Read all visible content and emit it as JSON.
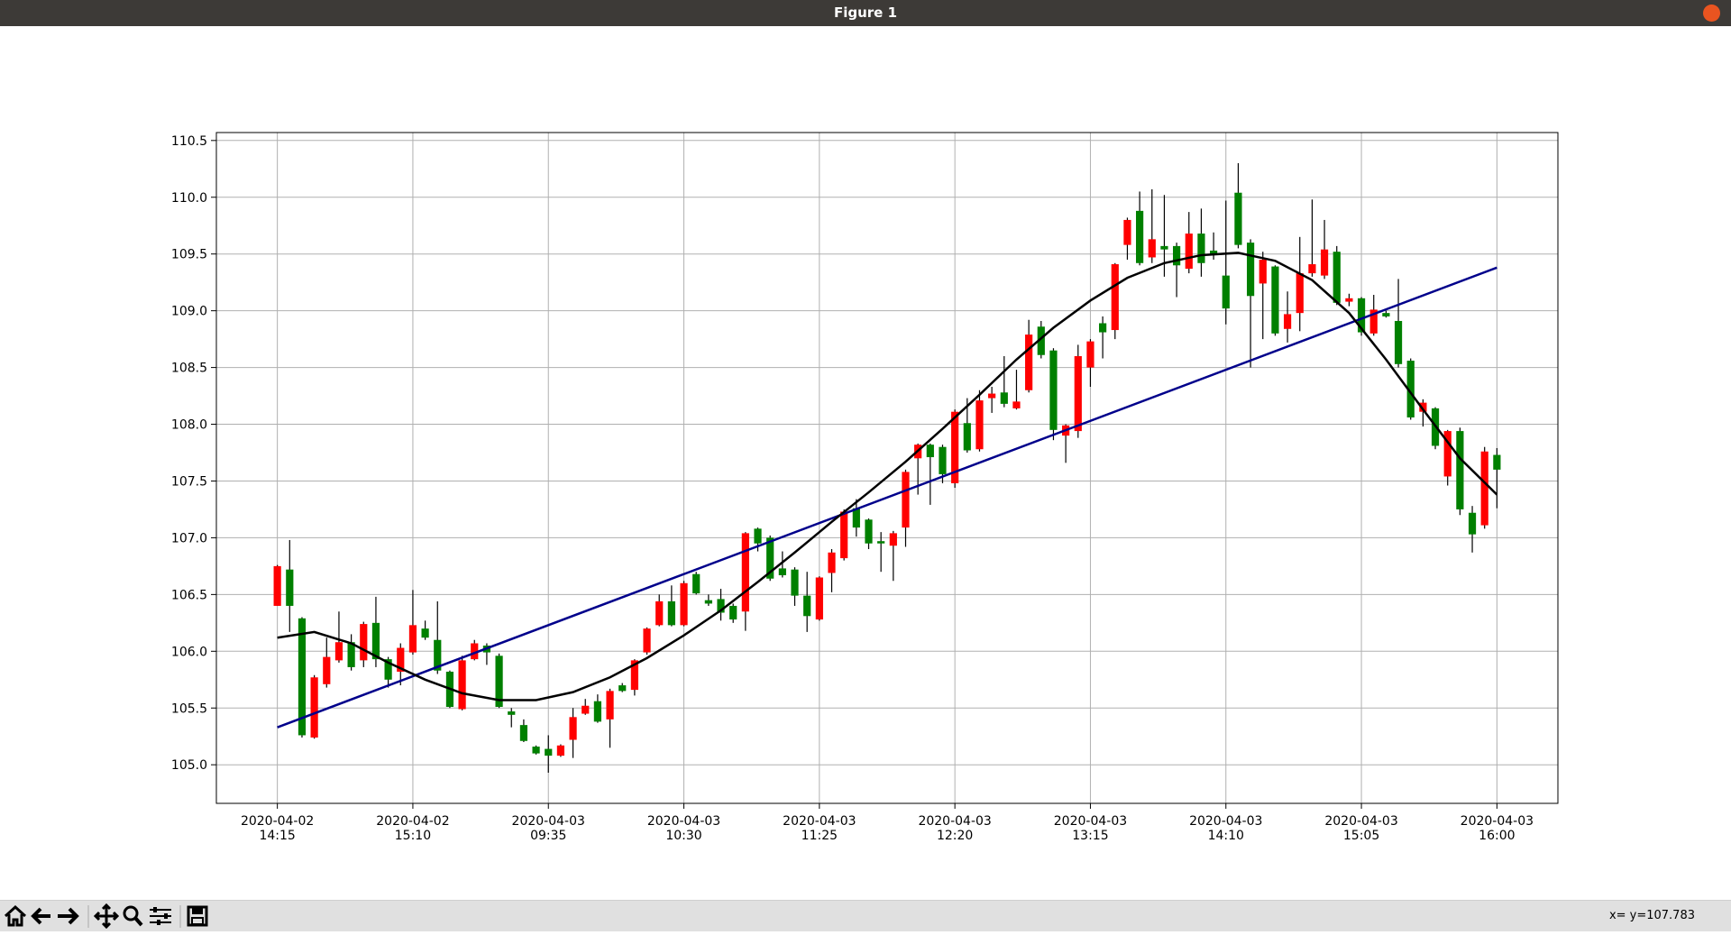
{
  "window": {
    "title": "Figure 1",
    "status": "x= y=107.783"
  },
  "chart_data": {
    "type": "candlestick",
    "up_color": "#008000",
    "down_color": "#ff0000",
    "open": [
      106.75,
      106.4,
      105.26,
      105.77,
      105.95,
      106.08,
      105.86,
      106.24,
      105.93,
      105.75,
      106.03,
      106.23,
      106.12,
      105.83,
      105.51,
      105.92,
      106.07,
      105.99,
      105.51,
      105.44,
      105.21,
      105.1,
      105.08,
      105.17,
      105.42,
      105.52,
      105.38,
      105.65,
      105.65,
      105.92,
      106.2,
      106.44,
      106.23,
      106.6,
      106.51,
      106.42,
      106.34,
      106.28,
      107.04,
      106.95,
      106.64,
      106.67,
      106.49,
      106.31,
      106.65,
      106.87,
      107.23,
      107.09,
      106.95,
      106.95,
      107.04,
      107.58,
      107.82,
      107.71,
      107.56,
      108.11,
      107.77,
      108.21,
      108.27,
      108.18,
      108.2,
      108.79,
      108.61,
      107.95,
      107.99,
      108.6,
      108.73,
      108.81,
      109.41,
      109.8,
      109.42,
      109.63,
      109.54,
      109.4,
      109.68,
      109.42,
      109.5,
      109.02,
      109.58,
      109.13,
      109.45,
      108.8,
      108.97,
      109.33,
      109.41,
      109.54,
      109.07,
      109.11,
      108.81,
      109.01,
      108.95,
      108.53,
      108.06,
      108.19,
      107.81,
      107.94,
      107.25,
      107.03,
      107.76,
      107.6
    ],
    "high": [
      106.76,
      106.98,
      106.3,
      105.79,
      106.12,
      106.35,
      106.15,
      106.26,
      106.48,
      105.95,
      106.07,
      106.54,
      106.27,
      106.44,
      105.83,
      105.96,
      106.1,
      106.07,
      105.98,
      105.5,
      105.4,
      105.17,
      105.26,
      105.18,
      105.5,
      105.58,
      105.62,
      105.67,
      105.72,
      105.93,
      106.21,
      106.5,
      106.58,
      106.62,
      106.7,
      106.5,
      106.55,
      106.42,
      107.05,
      107.09,
      107.02,
      106.88,
      106.74,
      106.7,
      106.66,
      106.9,
      107.25,
      107.34,
      107.17,
      107.05,
      107.06,
      107.6,
      107.83,
      107.83,
      107.82,
      108.13,
      108.23,
      108.3,
      108.33,
      108.6,
      108.48,
      108.92,
      108.91,
      108.67,
      108.0,
      108.7,
      108.75,
      108.95,
      109.42,
      109.82,
      110.05,
      110.07,
      110.02,
      109.6,
      109.87,
      109.9,
      109.69,
      109.97,
      110.3,
      109.63,
      109.52,
      109.4,
      109.17,
      109.65,
      109.98,
      109.8,
      109.57,
      109.15,
      109.12,
      109.14,
      109.0,
      109.28,
      108.58,
      108.22,
      108.15,
      107.95,
      107.97,
      107.28,
      107.8,
      107.79
    ],
    "low": [
      106.4,
      106.17,
      105.24,
      105.23,
      105.68,
      105.9,
      105.83,
      105.86,
      105.86,
      105.68,
      105.7,
      105.97,
      106.1,
      105.8,
      105.5,
      105.48,
      105.92,
      105.88,
      105.5,
      105.33,
      105.2,
      105.09,
      104.93,
      105.07,
      105.06,
      105.44,
      105.37,
      105.15,
      105.64,
      105.61,
      105.97,
      106.22,
      106.22,
      106.22,
      106.5,
      106.4,
      106.27,
      106.25,
      106.18,
      106.88,
      106.62,
      106.65,
      106.4,
      106.17,
      106.27,
      106.52,
      106.8,
      107.01,
      106.9,
      106.7,
      106.62,
      106.92,
      107.38,
      107.29,
      107.48,
      107.44,
      107.75,
      107.76,
      108.1,
      108.15,
      108.13,
      108.28,
      108.58,
      107.86,
      107.66,
      107.88,
      108.33,
      108.58,
      108.75,
      109.45,
      109.4,
      109.42,
      109.3,
      109.12,
      109.33,
      109.3,
      109.45,
      108.88,
      109.55,
      108.5,
      108.75,
      108.78,
      108.72,
      108.82,
      109.3,
      109.28,
      109.05,
      109.04,
      108.78,
      108.78,
      108.94,
      108.5,
      108.04,
      107.98,
      107.78,
      107.46,
      107.2,
      106.87,
      107.08,
      107.26
    ],
    "close": [
      106.4,
      106.72,
      106.29,
      105.24,
      105.71,
      105.92,
      106.08,
      105.92,
      106.25,
      105.93,
      105.82,
      105.99,
      106.2,
      106.1,
      105.82,
      105.49,
      105.93,
      106.05,
      105.96,
      105.47,
      105.35,
      105.16,
      105.14,
      105.08,
      105.22,
      105.45,
      105.56,
      105.4,
      105.7,
      105.66,
      105.99,
      106.23,
      106.44,
      106.23,
      106.68,
      106.45,
      106.46,
      106.4,
      106.35,
      107.08,
      107.0,
      106.73,
      106.72,
      106.49,
      106.28,
      106.69,
      106.82,
      107.26,
      107.16,
      106.97,
      106.93,
      107.09,
      107.7,
      107.82,
      107.8,
      107.48,
      108.01,
      107.78,
      108.23,
      108.28,
      108.14,
      108.3,
      108.86,
      108.65,
      107.9,
      107.94,
      108.5,
      108.89,
      108.83,
      109.58,
      109.88,
      109.47,
      109.57,
      109.57,
      109.37,
      109.68,
      109.53,
      109.31,
      110.04,
      109.6,
      109.24,
      109.39,
      108.84,
      108.98,
      109.33,
      109.31,
      109.52,
      109.08,
      109.11,
      108.8,
      108.98,
      108.91,
      108.56,
      108.11,
      108.14,
      107.54,
      107.94,
      107.22,
      107.11,
      107.73
    ],
    "lines": [
      {
        "color": "#00008b",
        "x": [
          0,
          99
        ],
        "values": [
          105.33,
          109.38
        ]
      },
      {
        "color": "#000000",
        "x": [
          0,
          3,
          6,
          9,
          12,
          15,
          18,
          21,
          24,
          27,
          30,
          33,
          36,
          39,
          42,
          45,
          48,
          51,
          54,
          57,
          60,
          63,
          66,
          69,
          72,
          75,
          78,
          81,
          84,
          87,
          90,
          93,
          96,
          99
        ],
        "values": [
          106.12,
          106.17,
          106.07,
          105.9,
          105.75,
          105.63,
          105.57,
          105.57,
          105.64,
          105.77,
          105.94,
          106.14,
          106.36,
          106.61,
          106.87,
          107.14,
          107.4,
          107.67,
          107.96,
          108.26,
          108.57,
          108.85,
          109.09,
          109.29,
          109.42,
          109.49,
          109.51,
          109.44,
          109.27,
          108.98,
          108.57,
          108.13,
          107.7,
          107.38
        ]
      }
    ],
    "xlim": [
      -4.95,
      103.95
    ],
    "ylim": [
      104.66,
      110.57
    ],
    "xticks": [
      {
        "value": 0,
        "label": "2020-04-02\n14:15"
      },
      {
        "value": 11,
        "label": "2020-04-02\n15:10"
      },
      {
        "value": 22,
        "label": "2020-04-03\n09:35"
      },
      {
        "value": 33,
        "label": "2020-04-03\n10:30"
      },
      {
        "value": 44,
        "label": "2020-04-03\n11:25"
      },
      {
        "value": 55,
        "label": "2020-04-03\n12:20"
      },
      {
        "value": 66,
        "label": "2020-04-03\n13:15"
      },
      {
        "value": 77,
        "label": "2020-04-03\n14:10"
      },
      {
        "value": 88,
        "label": "2020-04-03\n15:05"
      },
      {
        "value": 99,
        "label": "2020-04-03\n16:00"
      }
    ],
    "yticks": [
      {
        "value": 105,
        "label": "105.0"
      },
      105.5,
      {
        "value": 106,
        "label": "106.0"
      },
      106.5,
      {
        "value": 107,
        "label": "107.0"
      },
      107.5,
      {
        "value": 108,
        "label": "108.0"
      },
      108.5,
      {
        "value": 109,
        "label": "109.0"
      },
      109.5,
      {
        "value": 110,
        "label": "110.0"
      },
      110.5
    ],
    "grid": true
  }
}
